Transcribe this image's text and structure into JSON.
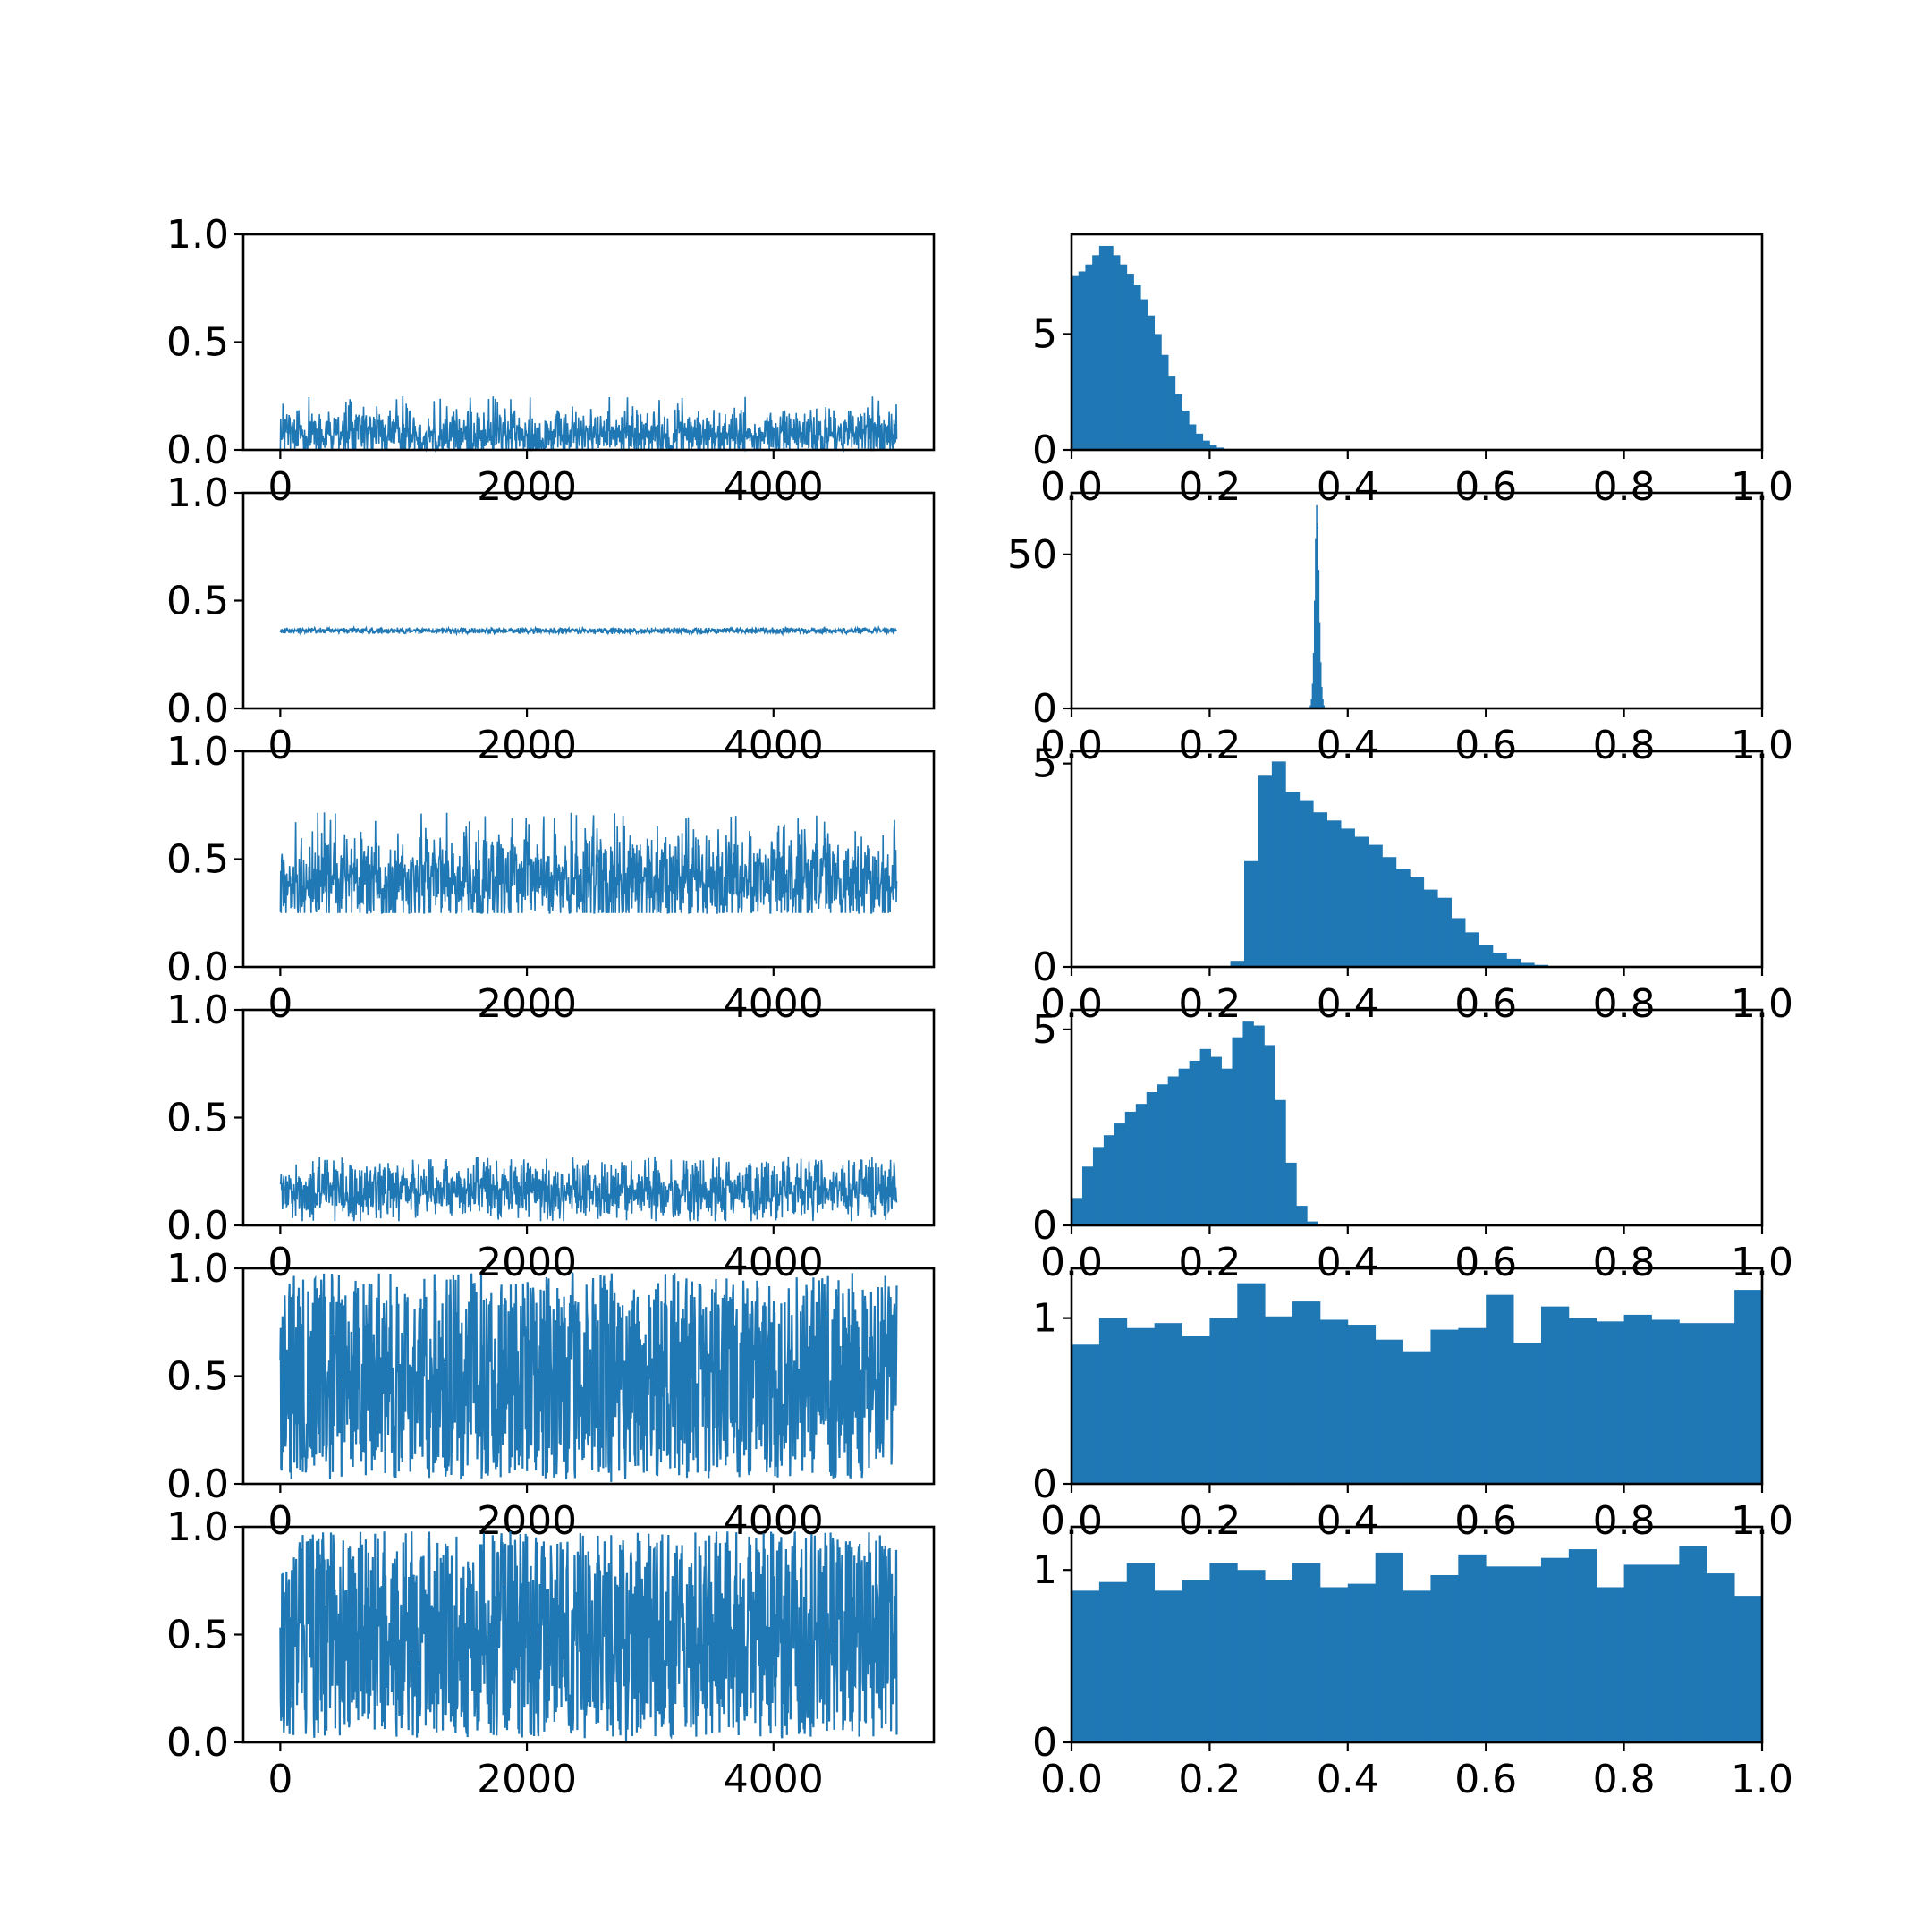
{
  "chart_data": {
    "type": "grid",
    "rows": 6,
    "cols": 2,
    "series_color": "#1f77b4",
    "panels": [
      {
        "row": 0,
        "col": 0,
        "type": "line",
        "xlim": [
          -300,
          5300
        ],
        "ylim": [
          0,
          1
        ],
        "xticks": [
          0,
          2000,
          4000
        ],
        "xtick_labels": [
          "0",
          "2000",
          "4000"
        ],
        "yticks": [
          0,
          0.5,
          1
        ],
        "ytick_labels": [
          "0.0",
          "0.5",
          "1.0"
        ],
        "n_samples": 5000,
        "trace": {
          "center": 0.07,
          "low": 0.0,
          "high": 0.25
        }
      },
      {
        "row": 0,
        "col": 1,
        "type": "histogram",
        "xlim": [
          0,
          1
        ],
        "ylim": [
          0,
          9.3
        ],
        "xticks": [
          0,
          0.2,
          0.4,
          0.6,
          0.8,
          1.0
        ],
        "xtick_labels": [
          "0.0",
          "0.2",
          "0.4",
          "0.6",
          "0.8",
          "1.0"
        ],
        "yticks": [
          0,
          5
        ],
        "ytick_labels": [
          "0",
          "5"
        ],
        "bin_start": 0.0,
        "bin_width": 0.01,
        "values": [
          7.5,
          7.7,
          8.0,
          8.4,
          8.8,
          8.8,
          8.4,
          8.0,
          7.6,
          7.1,
          6.5,
          5.8,
          5.0,
          4.1,
          3.2,
          2.4,
          1.7,
          1.1,
          0.7,
          0.4,
          0.2,
          0.1
        ]
      },
      {
        "row": 1,
        "col": 0,
        "type": "line",
        "xlim": [
          -300,
          5300
        ],
        "ylim": [
          0,
          1
        ],
        "xticks": [
          0,
          2000,
          4000
        ],
        "xtick_labels": [
          "0",
          "2000",
          "4000"
        ],
        "yticks": [
          0,
          0.5,
          1
        ],
        "ytick_labels": [
          "0.0",
          "0.5",
          "1.0"
        ],
        "n_samples": 5000,
        "trace": {
          "center": 0.36,
          "low": 0.345,
          "high": 0.375
        }
      },
      {
        "row": 1,
        "col": 1,
        "type": "histogram",
        "xlim": [
          0,
          1
        ],
        "ylim": [
          0,
          70
        ],
        "xticks": [
          0,
          0.2,
          0.4,
          0.6,
          0.8,
          1.0
        ],
        "xtick_labels": [
          "0.0",
          "0.2",
          "0.4",
          "0.6",
          "0.8",
          "1.0"
        ],
        "yticks": [
          0,
          50
        ],
        "ytick_labels": [
          "0",
          "50"
        ],
        "bin_start": 0.345,
        "bin_width": 0.0015,
        "values": [
          1,
          3,
          8,
          18,
          35,
          55,
          66,
          60,
          45,
          28,
          15,
          7,
          3,
          1
        ]
      },
      {
        "row": 2,
        "col": 0,
        "type": "line",
        "xlim": [
          -300,
          5300
        ],
        "ylim": [
          0,
          1
        ],
        "xticks": [
          0,
          2000,
          4000
        ],
        "xtick_labels": [
          "0",
          "2000",
          "4000"
        ],
        "yticks": [
          0,
          0.5,
          1
        ],
        "ytick_labels": [
          "0.0",
          "0.5",
          "1.0"
        ],
        "n_samples": 5000,
        "trace": {
          "center": 0.4,
          "low": 0.25,
          "high": 0.72
        }
      },
      {
        "row": 2,
        "col": 1,
        "type": "histogram",
        "xlim": [
          0,
          1
        ],
        "ylim": [
          0,
          5.3
        ],
        "xticks": [
          0,
          0.2,
          0.4,
          0.6,
          0.8,
          1.0
        ],
        "xtick_labels": [
          "0.0",
          "0.2",
          "0.4",
          "0.6",
          "0.8",
          "1.0"
        ],
        "yticks": [
          0,
          5
        ],
        "ytick_labels": [
          "0",
          "5"
        ],
        "bin_start": 0.23,
        "bin_width": 0.02,
        "values": [
          0.15,
          2.6,
          4.7,
          5.05,
          4.3,
          4.1,
          3.8,
          3.6,
          3.4,
          3.2,
          3.0,
          2.7,
          2.4,
          2.2,
          1.9,
          1.7,
          1.2,
          0.85,
          0.55,
          0.35,
          0.2,
          0.1,
          0.05
        ]
      },
      {
        "row": 3,
        "col": 0,
        "type": "line",
        "xlim": [
          -300,
          5300
        ],
        "ylim": [
          0,
          1
        ],
        "xticks": [
          0,
          2000,
          4000
        ],
        "xtick_labels": [
          "0",
          "2000",
          "4000"
        ],
        "yticks": [
          0,
          0.5,
          1
        ],
        "ytick_labels": [
          "0.0",
          "0.5",
          "1.0"
        ],
        "n_samples": 5000,
        "trace": {
          "center": 0.16,
          "low": 0.02,
          "high": 0.32
        }
      },
      {
        "row": 3,
        "col": 1,
        "type": "histogram",
        "xlim": [
          0,
          1
        ],
        "ylim": [
          0,
          5.5
        ],
        "xticks": [
          0,
          0.2,
          0.4,
          0.6,
          0.8,
          1.0
        ],
        "xtick_labels": [
          "0.0",
          "0.2",
          "0.4",
          "0.6",
          "0.8",
          "1.0"
        ],
        "yticks": [
          0,
          5
        ],
        "ytick_labels": [
          "0",
          "5"
        ],
        "bin_start": 0.0,
        "bin_width": 0.0155,
        "values": [
          0.7,
          1.5,
          2.0,
          2.3,
          2.6,
          2.9,
          3.1,
          3.4,
          3.6,
          3.8,
          4.0,
          4.2,
          4.5,
          4.3,
          4.0,
          4.8,
          5.2,
          5.1,
          4.6,
          3.2,
          1.6,
          0.5,
          0.1
        ]
      },
      {
        "row": 4,
        "col": 0,
        "type": "line",
        "xlim": [
          -300,
          5300
        ],
        "ylim": [
          0,
          1
        ],
        "xticks": [
          0,
          2000,
          4000
        ],
        "xtick_labels": [
          "0",
          "2000",
          "4000"
        ],
        "yticks": [
          0,
          0.5,
          1
        ],
        "ytick_labels": [
          "0.0",
          "0.5",
          "1.0"
        ],
        "n_samples": 5000,
        "trace": {
          "center": 0.5,
          "low": 0.0,
          "high": 1.0
        }
      },
      {
        "row": 4,
        "col": 1,
        "type": "histogram",
        "xlim": [
          0,
          1
        ],
        "ylim": [
          0,
          1.3
        ],
        "xticks": [
          0,
          0.2,
          0.4,
          0.6,
          0.8,
          1.0
        ],
        "xtick_labels": [
          "0.0",
          "0.2",
          "0.4",
          "0.6",
          "0.8",
          "1.0"
        ],
        "yticks": [
          0,
          1
        ],
        "ytick_labels": [
          "0",
          "1"
        ],
        "bin_start": 0.0,
        "bin_width": 0.04,
        "values": [
          0.84,
          1.0,
          0.94,
          0.97,
          0.89,
          1.0,
          1.21,
          1.01,
          1.1,
          0.99,
          0.96,
          0.87,
          0.8,
          0.93,
          0.94,
          1.14,
          0.85,
          1.07,
          1.0,
          0.98,
          1.02,
          0.99,
          0.97,
          0.97,
          1.17
        ]
      },
      {
        "row": 5,
        "col": 0,
        "type": "line",
        "xlim": [
          -300,
          5300
        ],
        "ylim": [
          0,
          1
        ],
        "xticks": [
          0,
          2000,
          4000
        ],
        "xtick_labels": [
          "0",
          "2000",
          "4000"
        ],
        "yticks": [
          0,
          0.5,
          1
        ],
        "ytick_labels": [
          "0.0",
          "0.5",
          "1.0"
        ],
        "n_samples": 5000,
        "trace": {
          "center": 0.5,
          "low": 0.0,
          "high": 1.0
        }
      },
      {
        "row": 5,
        "col": 1,
        "type": "histogram",
        "xlim": [
          0,
          1
        ],
        "ylim": [
          0,
          1.25
        ],
        "xticks": [
          0,
          0.2,
          0.4,
          0.6,
          0.8,
          1.0
        ],
        "xtick_labels": [
          "0.0",
          "0.2",
          "0.4",
          "0.6",
          "0.8",
          "1.0"
        ],
        "yticks": [
          0,
          1
        ],
        "ytick_labels": [
          "0",
          "1"
        ],
        "bin_start": 0.0,
        "bin_width": 0.04,
        "values": [
          0.88,
          0.93,
          1.04,
          0.88,
          0.94,
          1.04,
          1.0,
          0.94,
          1.04,
          0.9,
          0.92,
          1.1,
          0.88,
          0.97,
          1.09,
          1.02,
          1.02,
          1.07,
          1.12,
          0.9,
          1.03,
          1.03,
          1.14,
          0.98,
          0.85
        ]
      }
    ]
  }
}
